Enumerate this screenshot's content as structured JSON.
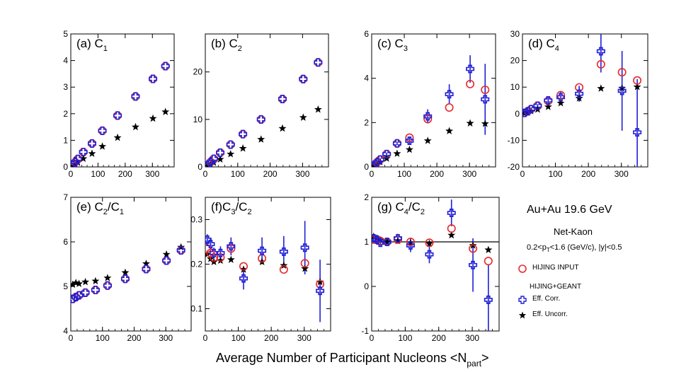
{
  "figure": {
    "xlabel_main": "Average Number of Participant Nucleons <N",
    "xlabel_sub": "part",
    "xlabel_end": ">"
  },
  "legend": {
    "system": "Au+Au 19.6 GeV",
    "species": "Net-Kaon",
    "cuts_a": "0.2<p",
    "cuts_sub": "T",
    "cuts_b": "<1.6 (GeV/c), |y|<0.5",
    "hijing_input": "HIJING INPUT",
    "hijing_geant": "HIJING+GEANT",
    "eff_corr": "Eff. Corr.",
    "eff_uncorr": "Eff. Uncorr."
  },
  "colors": {
    "input": "#e8282b",
    "corr": "#1f1fd6",
    "uncorr": "#000000"
  },
  "chart_data": [
    {
      "type": "scatter",
      "label": "(a) C",
      "label_sub": "1",
      "xlim": [
        0,
        380
      ],
      "ylim": [
        0,
        5
      ],
      "xticks": [
        0,
        100,
        200,
        300
      ],
      "yticks": [
        0,
        1,
        2,
        3,
        4,
        5
      ],
      "ytick_labels": [
        "0",
        "1",
        "2",
        "3",
        "4",
        "5"
      ],
      "x": [
        6,
        16,
        26,
        46,
        78,
        116,
        172,
        238,
        302,
        348
      ],
      "series": [
        {
          "name": "HIJING INPUT",
          "values": [
            0.07,
            0.18,
            0.3,
            0.56,
            0.88,
            1.36,
            1.93,
            2.65,
            3.31,
            3.79
          ]
        },
        {
          "name": "Eff. Corr.",
          "values": [
            0.07,
            0.18,
            0.3,
            0.56,
            0.88,
            1.36,
            1.93,
            2.65,
            3.31,
            3.79
          ],
          "err": [
            0,
            0,
            0,
            0,
            0,
            0,
            0,
            0,
            0,
            0
          ]
        },
        {
          "name": "Eff. Uncorr.",
          "values": [
            0.03,
            0.09,
            0.16,
            0.31,
            0.5,
            0.77,
            1.1,
            1.5,
            1.82,
            2.07
          ]
        }
      ]
    },
    {
      "type": "scatter",
      "label": "(b) C",
      "label_sub": "2",
      "xlim": [
        0,
        380
      ],
      "ylim": [
        0,
        28
      ],
      "xticks": [
        0,
        100,
        200,
        300
      ],
      "yticks": [
        0,
        10,
        20
      ],
      "ytick_labels": [
        "0",
        "10",
        "20"
      ],
      "x": [
        6,
        16,
        26,
        46,
        78,
        116,
        172,
        238,
        302,
        348
      ],
      "series": [
        {
          "name": "HIJING INPUT",
          "values": [
            0.3,
            1.0,
            1.7,
            3.0,
            4.7,
            6.9,
            10.0,
            14.3,
            18.5,
            22.0
          ]
        },
        {
          "name": "Eff. Corr.",
          "values": [
            0.3,
            1.0,
            1.7,
            3.0,
            4.7,
            6.9,
            10.0,
            14.3,
            18.5,
            22.0
          ],
          "err": [
            0,
            0,
            0,
            0,
            0,
            0,
            0,
            0,
            0,
            0
          ]
        },
        {
          "name": "Eff. Uncorr.",
          "values": [
            0.2,
            0.5,
            0.9,
            1.6,
            2.7,
            3.9,
            5.8,
            8.1,
            10.4,
            12.1
          ]
        }
      ]
    },
    {
      "type": "scatter",
      "label": "(c) C",
      "label_sub": "3",
      "xlim": [
        0,
        380
      ],
      "ylim": [
        0,
        6
      ],
      "xticks": [
        0,
        100,
        200,
        300
      ],
      "yticks": [
        0,
        2,
        4,
        6
      ],
      "ytick_labels": [
        "0",
        "2",
        "4",
        "6"
      ],
      "x": [
        6,
        16,
        26,
        46,
        78,
        116,
        172,
        238,
        302,
        348
      ],
      "series": [
        {
          "name": "HIJING INPUT",
          "values": [
            0.05,
            0.2,
            0.33,
            0.58,
            1.06,
            1.32,
            2.16,
            2.68,
            3.74,
            3.48
          ]
        },
        {
          "name": "Eff. Corr.",
          "values": [
            0.05,
            0.2,
            0.33,
            0.58,
            1.06,
            1.18,
            2.28,
            3.28,
            4.42,
            3.05
          ],
          "err": [
            0.03,
            0.05,
            0.05,
            0.07,
            0.08,
            0.18,
            0.32,
            0.45,
            0.62,
            1.6
          ]
        },
        {
          "name": "Eff. Uncorr.",
          "values": [
            0.02,
            0.12,
            0.22,
            0.38,
            0.6,
            0.78,
            1.18,
            1.62,
            1.97,
            1.95
          ]
        }
      ]
    },
    {
      "type": "scatter",
      "label": "(d) C",
      "label_sub": "4",
      "xlim": [
        0,
        380
      ],
      "ylim": [
        -20,
        30
      ],
      "xticks": [
        0,
        100,
        200,
        300
      ],
      "yticks": [
        -20,
        -10,
        0,
        10,
        20,
        30
      ],
      "ytick_labels": [
        "-20",
        "-10",
        "0",
        "10",
        "20",
        "30"
      ],
      "x": [
        6,
        16,
        26,
        46,
        78,
        116,
        172,
        238,
        302,
        348
      ],
      "series": [
        {
          "name": "HIJING INPUT",
          "values": [
            0.3,
            0.9,
            1.7,
            3.0,
            4.8,
            7.0,
            9.9,
            18.6,
            15.6,
            12.5
          ]
        },
        {
          "name": "Eff. Corr.",
          "values": [
            0.3,
            0.9,
            1.7,
            3.0,
            5.0,
            6.2,
            7.5,
            23.5,
            8.6,
            -7.0
          ],
          "err": [
            0.2,
            0.3,
            0.4,
            0.6,
            1.2,
            2.0,
            3.0,
            8.0,
            15.0,
            20.0
          ]
        },
        {
          "name": "Eff. Uncorr.",
          "values": [
            0.1,
            0.5,
            1.0,
            1.6,
            2.6,
            4.0,
            5.8,
            9.5,
            9.6,
            10.1
          ]
        }
      ]
    },
    {
      "type": "scatter",
      "label": "(e) C",
      "label_sub": "2",
      "label_mid": "/C",
      "label_sub2": "1",
      "xlim": [
        0,
        380
      ],
      "ylim": [
        4,
        7
      ],
      "xticks": [
        0,
        100,
        200,
        300
      ],
      "yticks": [
        4,
        5,
        6,
        7
      ],
      "ytick_labels": [
        "4",
        "5",
        "6",
        "7"
      ],
      "x": [
        6,
        16,
        26,
        46,
        78,
        116,
        172,
        238,
        302,
        348
      ],
      "series": [
        {
          "name": "HIJING INPUT",
          "values": [
            4.72,
            4.76,
            4.8,
            4.86,
            4.92,
            5.02,
            5.17,
            5.39,
            5.58,
            5.81
          ]
        },
        {
          "name": "Eff. Corr.",
          "values": [
            4.72,
            4.76,
            4.8,
            4.86,
            4.92,
            5.02,
            5.17,
            5.39,
            5.58,
            5.81
          ],
          "err": [
            0,
            0,
            0,
            0,
            0,
            0,
            0,
            0,
            0,
            0
          ]
        },
        {
          "name": "Eff. Uncorr.",
          "values": [
            5.04,
            5.08,
            5.06,
            5.1,
            5.12,
            5.19,
            5.31,
            5.51,
            5.72,
            5.88
          ]
        }
      ]
    },
    {
      "type": "scatter",
      "label": "(f)C",
      "label_sub": "3",
      "label_mid": "/C",
      "label_sub2": "2",
      "xlim": [
        0,
        380
      ],
      "ylim": [
        0.05,
        0.35
      ],
      "xticks": [
        0,
        100,
        200,
        300
      ],
      "yticks": [
        0.1,
        0.2,
        0.3
      ],
      "ytick_labels": [
        "0.1",
        "0.2",
        "0.3"
      ],
      "x": [
        6,
        16,
        26,
        46,
        78,
        116,
        172,
        238,
        302,
        348
      ],
      "series": [
        {
          "name": "HIJING INPUT",
          "values": [
            0.235,
            0.225,
            0.215,
            0.215,
            0.235,
            0.195,
            0.213,
            0.188,
            0.202,
            0.155
          ]
        },
        {
          "name": "Eff. Corr.",
          "values": [
            0.255,
            0.245,
            0.225,
            0.225,
            0.24,
            0.168,
            0.23,
            0.228,
            0.237,
            0.14
          ],
          "err": [
            0.012,
            0.012,
            0.012,
            0.015,
            0.02,
            0.025,
            0.03,
            0.035,
            0.06,
            0.07
          ]
        },
        {
          "name": "Eff. Uncorr.",
          "values": [
            0.222,
            0.212,
            0.205,
            0.208,
            0.21,
            0.188,
            0.205,
            0.197,
            0.19,
            0.16
          ]
        }
      ]
    },
    {
      "type": "scatter",
      "label": "(g) C",
      "label_sub": "4",
      "label_mid": "/C",
      "label_sub2": "2",
      "xlim": [
        0,
        380
      ],
      "ylim": [
        -1,
        2
      ],
      "xticks": [
        0,
        100,
        200,
        300
      ],
      "yticks": [
        -1,
        0,
        1,
        2
      ],
      "ytick_labels": [
        "-1",
        "0",
        "1",
        "2"
      ],
      "reference_line": 1,
      "x": [
        6,
        16,
        26,
        46,
        78,
        116,
        172,
        238,
        302,
        348
      ],
      "series": [
        {
          "name": "HIJING INPUT",
          "values": [
            1.05,
            1.05,
            1.02,
            1.0,
            1.05,
            1.0,
            0.98,
            1.3,
            0.85,
            0.57
          ]
        },
        {
          "name": "Eff. Corr.",
          "values": [
            1.08,
            1.05,
            0.98,
            1.0,
            1.08,
            0.92,
            0.72,
            1.65,
            0.48,
            -0.3
          ],
          "err": [
            0.05,
            0.06,
            0.07,
            0.08,
            0.1,
            0.15,
            0.2,
            0.3,
            0.6,
            0.8
          ]
        },
        {
          "name": "Eff. Uncorr.",
          "values": [
            1.12,
            1.08,
            1.04,
            1.0,
            1.02,
            0.98,
            0.96,
            1.15,
            0.92,
            0.82
          ]
        }
      ]
    }
  ]
}
